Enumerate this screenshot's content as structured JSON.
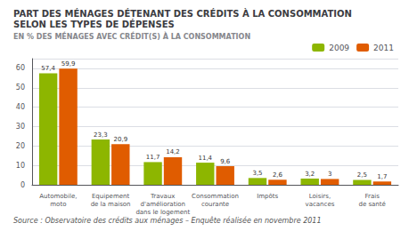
{
  "chart_data": {
    "type": "bar",
    "title": "PART DES MÉNAGES DÉTENANT DES CRÉDITS À LA CONSOMMATION\nSELON LES TYPES DE DÉPENSES",
    "subtitle": "EN % DES MÉNAGES AVEC CRÉDIT(S) À LA CONSOMMATION",
    "source": "Source : Observatoire des crédits aux ménages – Enquête réalisée en novembre 2011",
    "categories": [
      "Automobile,\nmoto",
      "Equipement\nde la maison",
      "Travaux\nd'amélioration\ndans le logement",
      "Consommation\ncourante",
      "Impôts",
      "Loisirs,\nvacances",
      "Frais\nde santé"
    ],
    "series": [
      {
        "name": "2009",
        "color": "#8db600",
        "values": [
          57.4,
          23.3,
          11.7,
          11.4,
          3.5,
          3.2,
          2.5
        ],
        "value_labels": [
          "57,4",
          "23,3",
          "11,7",
          "11,4",
          "3,5",
          "3,2",
          "2,5"
        ]
      },
      {
        "name": "2011",
        "color": "#e05c00",
        "values": [
          59.9,
          20.9,
          14.2,
          9.6,
          2.6,
          3.0,
          1.7
        ],
        "value_labels": [
          "59,9",
          "20,9",
          "14,2",
          "9,6",
          "2,6",
          "3",
          "1,7"
        ]
      }
    ],
    "ylim": [
      0,
      65
    ],
    "yticks": [
      0,
      10,
      20,
      30,
      40,
      50,
      60
    ],
    "grid": true,
    "legend": "upper right",
    "data_labels": true
  }
}
